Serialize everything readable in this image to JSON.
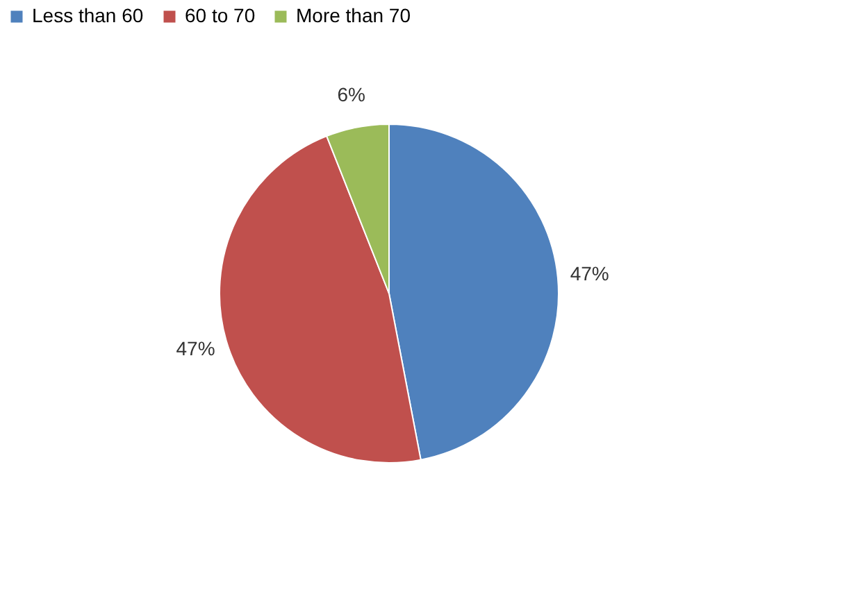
{
  "chart_data": {
    "type": "pie",
    "categories": [
      "Less than 60",
      "60 to 70",
      "More than 70"
    ],
    "values": [
      47,
      47,
      6
    ],
    "colors": [
      "#4f81bd",
      "#c0504d",
      "#9bbb59"
    ],
    "value_labels": [
      "47%",
      "47%",
      "6%"
    ],
    "legend": "top"
  }
}
